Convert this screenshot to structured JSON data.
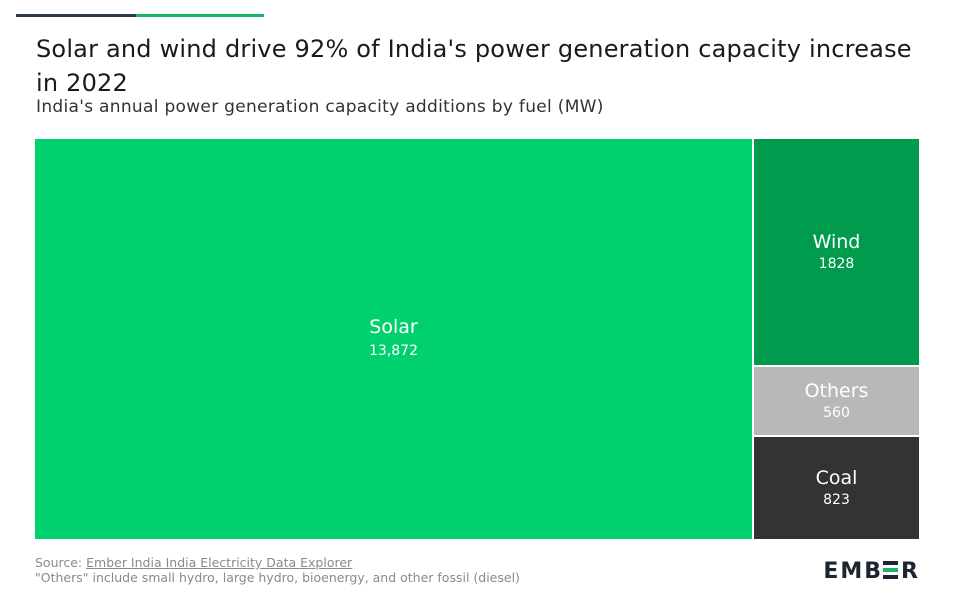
{
  "header": {
    "title": "Solar and wind drive 92% of India's power generation capacity increase in 2022",
    "subtitle": "India's annual power generation capacity additions by fuel (MW)"
  },
  "chart_data": {
    "type": "treemap",
    "title": "Solar and wind drive 92% of India's power generation capacity increase in 2022",
    "subtitle": "India's annual power generation capacity additions by fuel (MW)",
    "series": [
      {
        "name": "Solar",
        "value": 13872,
        "value_label": "13,872",
        "color": "#00d16e",
        "text_color": "#ffffff"
      },
      {
        "name": "Wind",
        "value": 1828,
        "value_label": "1828",
        "color": "#009b4d",
        "text_color": "#ffffff"
      },
      {
        "name": "Others",
        "value": 560,
        "value_label": "560",
        "color": "#b8b8b8",
        "text_color": "#ffffff"
      },
      {
        "name": "Coal",
        "value": 823,
        "value_label": "823",
        "color": "#333333",
        "text_color": "#ffffff"
      }
    ]
  },
  "footer": {
    "source_prefix": "Source: ",
    "source_link": "Ember India India Electricity Data Explorer",
    "note": "\"Others\" include small hydro, large hydro, bioenergy, and other fossil (diesel)"
  },
  "logo": {
    "text_left": "EMB",
    "text_right": "R"
  }
}
